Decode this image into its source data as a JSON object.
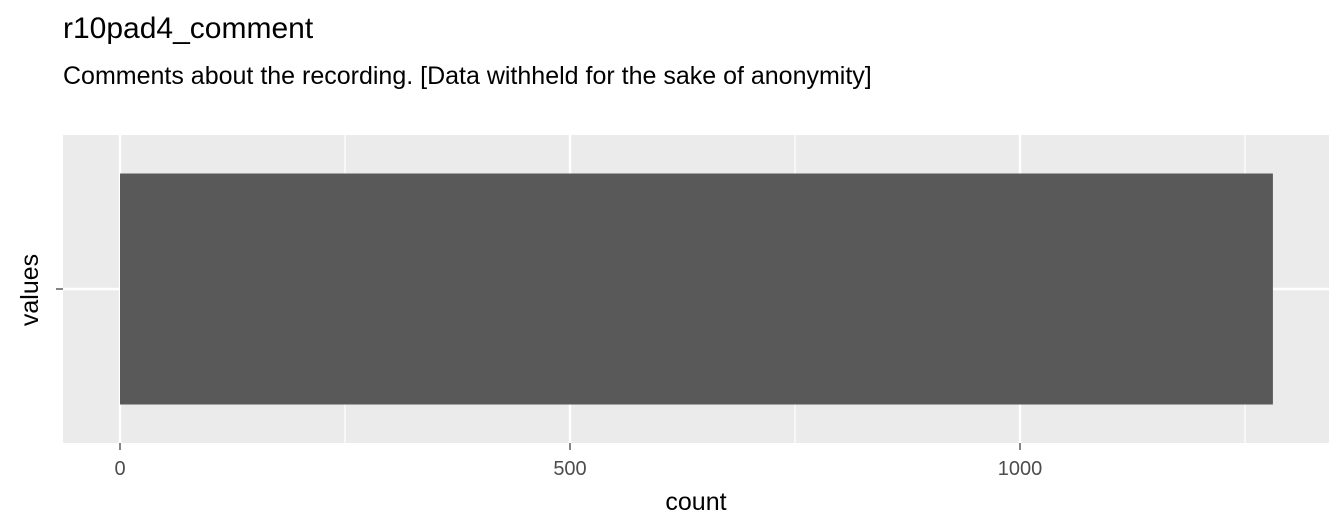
{
  "chart_data": {
    "type": "bar",
    "orientation": "horizontal",
    "title": "r10pad4_comment",
    "subtitle": "Comments about the recording. [Data withheld for the sake of anonymity]",
    "xlabel": "count",
    "ylabel": "values",
    "categories": [
      ""
    ],
    "values": [
      1281
    ],
    "xlim": [
      -63,
      1344
    ],
    "x_ticks": [
      0,
      500,
      1000
    ],
    "x_tick_labels": [
      "0",
      "500",
      "1000"
    ],
    "grid": true,
    "colors": {
      "panel": "#EBEBEB",
      "grid": "#FFFFFF",
      "bar": "#595959",
      "tick": "#333333",
      "tick_label": "#4D4D4D"
    }
  }
}
